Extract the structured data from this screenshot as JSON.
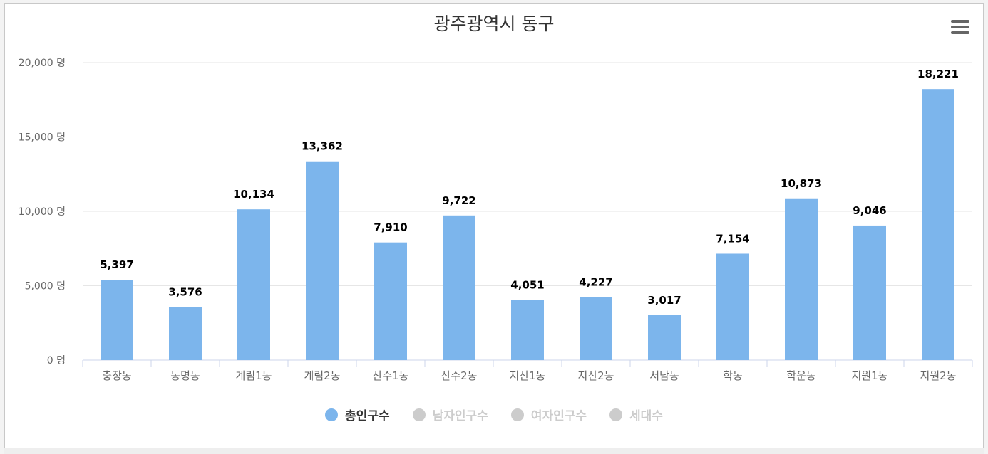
{
  "title": "광주광역시 동구",
  "menu_icon": "hamburger-menu-icon",
  "colors": {
    "bar": "#7cb5ec",
    "grid": "#e6e6e6",
    "axis": "#ccd6eb",
    "legend_active": "#7cb5ec",
    "legend_inactive": "#cccccc",
    "text_active": "#333333",
    "text_inactive": "#cccccc"
  },
  "legend": [
    {
      "label": "총인구수",
      "active": true
    },
    {
      "label": "남자인구수",
      "active": false
    },
    {
      "label": "여자인구수",
      "active": false
    },
    {
      "label": "세대수",
      "active": false
    }
  ],
  "chart_data": {
    "type": "bar",
    "title": "광주광역시 동구",
    "categories": [
      "충장동",
      "동명동",
      "계림1동",
      "계림2동",
      "산수1동",
      "산수2동",
      "지산1동",
      "지산2동",
      "서남동",
      "학동",
      "학운동",
      "지원1동",
      "지원2동"
    ],
    "series": [
      {
        "name": "총인구수",
        "values": [
          5397,
          3576,
          10134,
          13362,
          7910,
          9722,
          4051,
          4227,
          3017,
          7154,
          10873,
          9046,
          18221
        ]
      }
    ],
    "data_labels": [
      "5,397",
      "3,576",
      "10,134",
      "13,362",
      "7,910",
      "9,722",
      "4,051",
      "4,227",
      "3,017",
      "7,154",
      "10,873",
      "9,046",
      "18,221"
    ],
    "y_ticks": [
      0,
      5000,
      10000,
      15000,
      20000
    ],
    "y_tick_labels": [
      "0 명",
      "5,000 명",
      "10,000 명",
      "15,000 명",
      "20,000 명"
    ],
    "ylim": [
      0,
      20000
    ],
    "grid": true,
    "legend_position": "bottom-center"
  }
}
